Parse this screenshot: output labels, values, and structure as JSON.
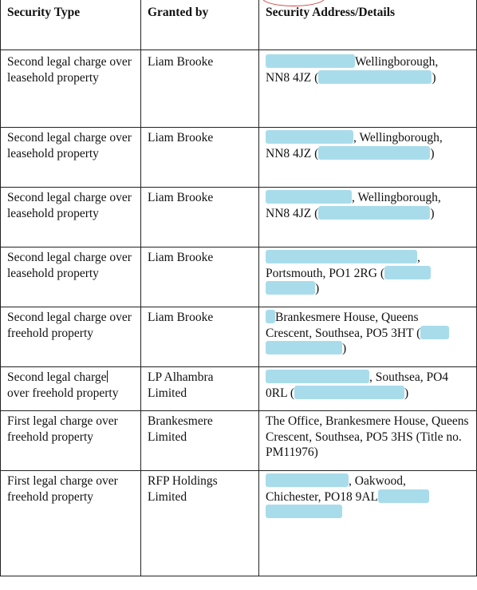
{
  "headers": {
    "security_type": "Security Type",
    "granted_by": "Granted by",
    "address": "Security Address/Details"
  },
  "rows": [
    {
      "type": "Second legal charge over leasehold property",
      "granted_by": "Liam Brooke",
      "addr_a": "Wellingborough,",
      "addr_b": "NN8 4JZ (",
      "addr_c": ")"
    },
    {
      "type": "Second legal charge over leasehold property",
      "granted_by": "Liam Brooke",
      "addr_a": ", Wellingborough,",
      "addr_b": "NN8 4JZ (",
      "addr_c": ")"
    },
    {
      "type": "Second legal charge over leasehold property",
      "granted_by": "Liam Brooke",
      "addr_a": ", Wellingborough,",
      "addr_b": "NN8 4JZ (",
      "addr_c": ")"
    },
    {
      "type": "Second legal charge over leasehold property",
      "granted_by": "Liam Brooke",
      "addr_a": ",",
      "addr_b": "Portsmouth, PO1 2RG (",
      "addr_c": ")"
    },
    {
      "type": "Second legal charge over freehold property",
      "granted_by": "Liam Brooke",
      "addr_a": "Brankesmere House, Queens",
      "addr_b": "Crescent, Southsea, PO5 3HT (",
      "addr_c": ")"
    },
    {
      "type_a": "Second legal charge",
      "type_b": "over freehold property",
      "granted_by_a": "LP Alhambra",
      "granted_by_b": "Limited",
      "addr_a": ", Southsea, PO4",
      "addr_b": "0RL (",
      "addr_c": ")"
    },
    {
      "type": "First legal charge over freehold property",
      "granted_by_a": "Brankesmere",
      "granted_by_b": "Limited",
      "addr": "The Office, Brankesmere House, Queens Crescent, Southsea, PO5 3HS (Title no. PM11976)"
    },
    {
      "type": "First legal charge over freehold property",
      "granted_by_a": "RFP Holdings",
      "granted_by_b": "Limited",
      "addr_a": ", Oakwood,",
      "addr_b": "Chichester, PO18 9AL"
    }
  ]
}
